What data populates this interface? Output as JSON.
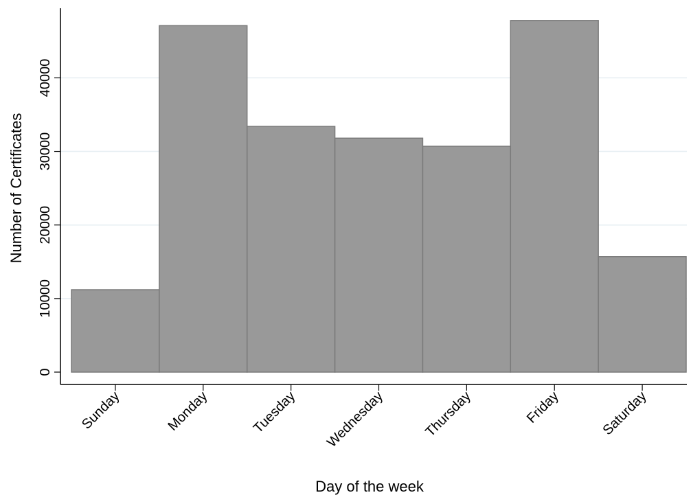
{
  "chart_data": {
    "type": "bar",
    "categories": [
      "Sunday",
      "Monday",
      "Tuesday",
      "Wednesday",
      "Thursday",
      "Friday",
      "Saturday"
    ],
    "values": [
      11200,
      47100,
      33400,
      31800,
      30700,
      47800,
      15700
    ],
    "xlabel": "Day of the week",
    "ylabel": "Number of Certificates",
    "ylim": [
      0,
      50000
    ],
    "yticks": [
      "0",
      "10000",
      "20000",
      "30000",
      "40000"
    ],
    "grid": true,
    "colors": {
      "bar_fill": "#999999",
      "bar_stroke": "#7a7a7a",
      "grid": "#e6eef2",
      "axis": "#000000"
    }
  }
}
